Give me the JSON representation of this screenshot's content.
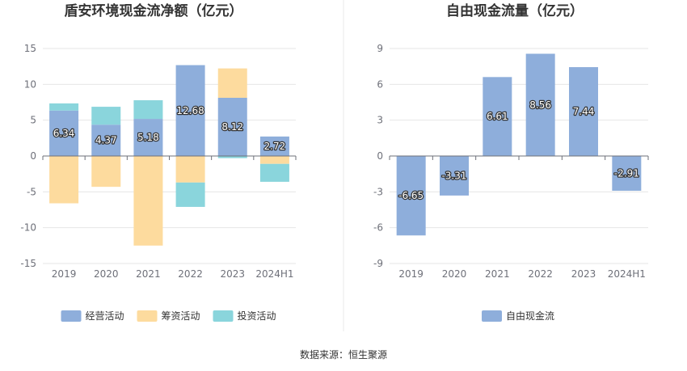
{
  "footer": {
    "source": "数据来源：恒生聚源"
  },
  "chart_data": [
    {
      "type": "bar",
      "stacked": true,
      "title": "盾安环境现金流净额（亿元）",
      "categories": [
        "2019",
        "2020",
        "2021",
        "2022",
        "2023",
        "2024H1"
      ],
      "ylim": [
        -15,
        15
      ],
      "yticks": [
        15,
        10,
        5,
        0,
        -5,
        -10,
        -15
      ],
      "grid": true,
      "legend": "bottom",
      "series": [
        {
          "name": "经营活动",
          "color": "#8eaedb",
          "values": [
            6.34,
            4.37,
            5.18,
            12.68,
            8.12,
            2.72
          ],
          "labeled": true
        },
        {
          "name": "筹资活动",
          "color": "#fddb9e",
          "values": [
            -6.6,
            -4.3,
            -12.5,
            -3.7,
            4.1,
            -1.1
          ],
          "labeled": false
        },
        {
          "name": "投资活动",
          "color": "#8ad5dc",
          "values": [
            1.0,
            2.5,
            2.6,
            -3.4,
            -0.3,
            -2.5
          ],
          "labeled": false
        }
      ],
      "data_labels": [
        "6.34",
        "4.37",
        "5.18",
        "12.68",
        "8.12",
        "2.72"
      ]
    },
    {
      "type": "bar",
      "title": "自由现金流量（亿元）",
      "categories": [
        "2019",
        "2020",
        "2021",
        "2022",
        "2023",
        "2024H1"
      ],
      "ylim": [
        -9,
        9
      ],
      "yticks": [
        9,
        6,
        3,
        0,
        -3,
        -6,
        -9
      ],
      "grid": true,
      "legend": "bottom",
      "series": [
        {
          "name": "自由现金流",
          "color": "#8eaedb",
          "values": [
            -6.65,
            -3.31,
            6.61,
            8.56,
            7.44,
            -2.91
          ],
          "labeled": true
        }
      ],
      "data_labels": [
        "-6.65",
        "-3.31",
        "6.61",
        "8.56",
        "7.44",
        "-2.91"
      ]
    }
  ]
}
